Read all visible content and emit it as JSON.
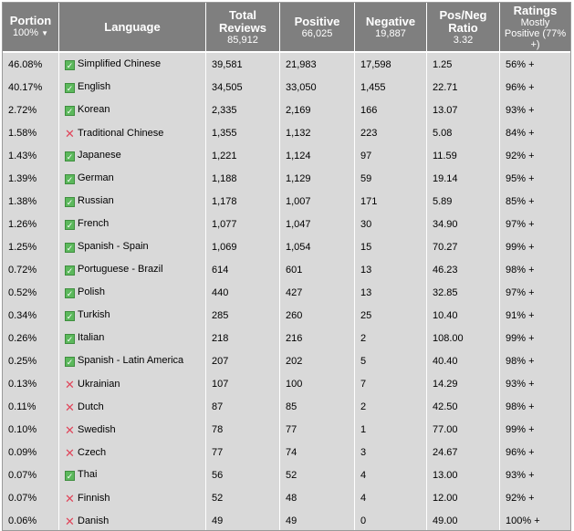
{
  "headers": {
    "portion": {
      "label": "Portion",
      "sub": "100%",
      "sort": "▼"
    },
    "language": {
      "label": "Language"
    },
    "total": {
      "label": "Total Reviews",
      "sub": "85,912"
    },
    "positive": {
      "label": "Positive",
      "sub": "66,025"
    },
    "negative": {
      "label": "Negative",
      "sub": "19,887"
    },
    "ratio": {
      "label": "Pos/Neg Ratio",
      "sub": "3.32"
    },
    "ratings": {
      "label": "Ratings",
      "sub": "Mostly Positive (77% +)"
    }
  },
  "colors": {
    "header_bg": "#7f7f7f",
    "row_bg": "#d9d9d9",
    "check_green": "#5cb85c",
    "cross_red": "#e0455a"
  },
  "rows": [
    {
      "portion": "46.08%",
      "supported": true,
      "language": "Simplified Chinese",
      "total": "39,581",
      "positive": "21,983",
      "negative": "17,598",
      "ratio": "1.25",
      "rating": "56% +"
    },
    {
      "portion": "40.17%",
      "supported": true,
      "language": "English",
      "total": "34,505",
      "positive": "33,050",
      "negative": "1,455",
      "ratio": "22.71",
      "rating": "96% +"
    },
    {
      "portion": "2.72%",
      "supported": true,
      "language": "Korean",
      "total": "2,335",
      "positive": "2,169",
      "negative": "166",
      "ratio": "13.07",
      "rating": "93% +"
    },
    {
      "portion": "1.58%",
      "supported": false,
      "language": "Traditional Chinese",
      "total": "1,355",
      "positive": "1,132",
      "negative": "223",
      "ratio": "5.08",
      "rating": "84% +"
    },
    {
      "portion": "1.43%",
      "supported": true,
      "language": "Japanese",
      "total": "1,221",
      "positive": "1,124",
      "negative": "97",
      "ratio": "11.59",
      "rating": "92% +"
    },
    {
      "portion": "1.39%",
      "supported": true,
      "language": "German",
      "total": "1,188",
      "positive": "1,129",
      "negative": "59",
      "ratio": "19.14",
      "rating": "95% +"
    },
    {
      "portion": "1.38%",
      "supported": true,
      "language": "Russian",
      "total": "1,178",
      "positive": "1,007",
      "negative": "171",
      "ratio": "5.89",
      "rating": "85% +"
    },
    {
      "portion": "1.26%",
      "supported": true,
      "language": "French",
      "total": "1,077",
      "positive": "1,047",
      "negative": "30",
      "ratio": "34.90",
      "rating": "97% +"
    },
    {
      "portion": "1.25%",
      "supported": true,
      "language": "Spanish - Spain",
      "total": "1,069",
      "positive": "1,054",
      "negative": "15",
      "ratio": "70.27",
      "rating": "99% +"
    },
    {
      "portion": "0.72%",
      "supported": true,
      "language": "Portuguese - Brazil",
      "total": "614",
      "positive": "601",
      "negative": "13",
      "ratio": "46.23",
      "rating": "98% +"
    },
    {
      "portion": "0.52%",
      "supported": true,
      "language": "Polish",
      "total": "440",
      "positive": "427",
      "negative": "13",
      "ratio": "32.85",
      "rating": "97% +"
    },
    {
      "portion": "0.34%",
      "supported": true,
      "language": "Turkish",
      "total": "285",
      "positive": "260",
      "negative": "25",
      "ratio": "10.40",
      "rating": "91% +"
    },
    {
      "portion": "0.26%",
      "supported": true,
      "language": "Italian",
      "total": "218",
      "positive": "216",
      "negative": "2",
      "ratio": "108.00",
      "rating": "99% +"
    },
    {
      "portion": "0.25%",
      "supported": true,
      "language": "Spanish - Latin America",
      "total": "207",
      "positive": "202",
      "negative": "5",
      "ratio": "40.40",
      "rating": "98% +"
    },
    {
      "portion": "0.13%",
      "supported": false,
      "language": "Ukrainian",
      "total": "107",
      "positive": "100",
      "negative": "7",
      "ratio": "14.29",
      "rating": "93% +"
    },
    {
      "portion": "0.11%",
      "supported": false,
      "language": "Dutch",
      "total": "87",
      "positive": "85",
      "negative": "2",
      "ratio": "42.50",
      "rating": "98% +"
    },
    {
      "portion": "0.10%",
      "supported": false,
      "language": "Swedish",
      "total": "78",
      "positive": "77",
      "negative": "1",
      "ratio": "77.00",
      "rating": "99% +"
    },
    {
      "portion": "0.09%",
      "supported": false,
      "language": "Czech",
      "total": "77",
      "positive": "74",
      "negative": "3",
      "ratio": "24.67",
      "rating": "96% +"
    },
    {
      "portion": "0.07%",
      "supported": true,
      "language": "Thai",
      "total": "56",
      "positive": "52",
      "negative": "4",
      "ratio": "13.00",
      "rating": "93% +"
    },
    {
      "portion": "0.07%",
      "supported": false,
      "language": "Finnish",
      "total": "52",
      "positive": "48",
      "negative": "4",
      "ratio": "12.00",
      "rating": "92% +"
    },
    {
      "portion": "0.06%",
      "supported": false,
      "language": "Danish",
      "total": "49",
      "positive": "49",
      "negative": "0",
      "ratio": "49.00",
      "rating": "100% +"
    }
  ]
}
